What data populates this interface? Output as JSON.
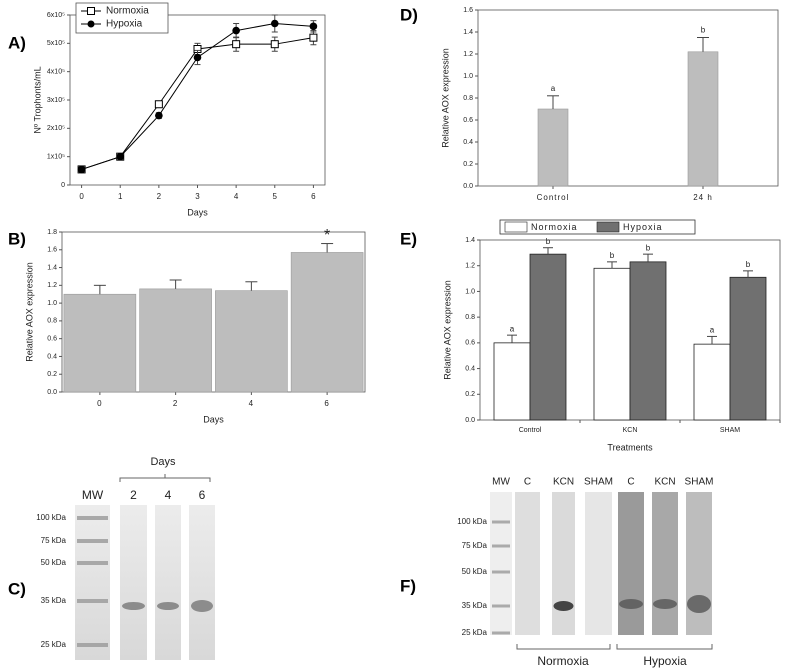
{
  "chart_data": [
    {
      "type": "line",
      "panel": "A)",
      "xlabel": "Days",
      "ylabel": "Nº Trophonts/mL",
      "x": [
        0,
        1,
        2,
        3,
        4,
        5,
        6
      ],
      "xlim": [
        -0.3,
        6.3
      ],
      "xticks": [
        0,
        1,
        2,
        3,
        4,
        5,
        6
      ],
      "ylim": [
        0,
        600000
      ],
      "yticks": [
        0,
        {
          "value": 100000,
          "label": "1x10⁵"
        },
        {
          "value": 200000,
          "label": "2x10⁵"
        },
        {
          "value": 300000,
          "label": "3x10⁵"
        },
        {
          "value": 400000,
          "label": "4x10⁵"
        },
        {
          "value": 500000,
          "label": "5x10⁵"
        },
        {
          "value": 600000,
          "label": "6x10⁵"
        }
      ],
      "legend": "upper left",
      "series": [
        {
          "name": "Normoxia",
          "color": "#000000",
          "marker": "open-square",
          "values": [
            55000,
            100000,
            285000,
            480000,
            497000,
            497000,
            520000
          ],
          "errors": [
            0,
            0,
            10000,
            20000,
            25000,
            25000,
            25000
          ]
        },
        {
          "name": "Hypoxia",
          "color": "#000000",
          "marker": "filled-circle",
          "values": [
            55000,
            100000,
            245000,
            450000,
            545000,
            570000,
            560000
          ],
          "errors": [
            0,
            0,
            10000,
            25000,
            25000,
            30000,
            20000
          ]
        }
      ]
    },
    {
      "type": "bar",
      "panel": "B)",
      "xlabel": "Days",
      "ylabel": "Relative AOX expression",
      "categories": [
        "0",
        "2",
        "4",
        "6"
      ],
      "values": [
        1.1,
        1.16,
        1.14,
        1.57
      ],
      "errors": [
        0.1,
        0.1,
        0.1,
        0.1
      ],
      "letters": [
        null,
        null,
        null,
        "*"
      ],
      "color": "#bdbdbd",
      "width": 0.95,
      "ylim": [
        0,
        1.8
      ],
      "yticks": [
        {
          "value": 0,
          "label": "0.0"
        },
        {
          "value": 0.2,
          "label": "0.2"
        },
        {
          "value": 0.4,
          "label": "0.4"
        },
        {
          "value": 0.6,
          "label": "0.6"
        },
        {
          "value": 0.8,
          "label": "0.8"
        },
        {
          "value": 1,
          "label": "1.0"
        },
        {
          "value": 1.2,
          "label": "1.2"
        },
        {
          "value": 1.4,
          "label": "1.4"
        },
        {
          "value": 1.6,
          "label": "1.6"
        },
        {
          "value": 1.8,
          "label": "1.8"
        }
      ]
    },
    {
      "type": "bar",
      "panel": "D)",
      "ylabel": "Relative AOX expression",
      "categories": [
        "Control",
        "24 h"
      ],
      "values": [
        0.7,
        1.22
      ],
      "errors": [
        0.12,
        0.13
      ],
      "letters": [
        "a",
        "b"
      ],
      "color": "#bdbdbd",
      "width": 0.2,
      "ylim": [
        0,
        1.6
      ],
      "yticks": [
        {
          "value": 0,
          "label": "0.0"
        },
        {
          "value": 0.2,
          "label": "0.2"
        },
        {
          "value": 0.4,
          "label": "0.4"
        },
        {
          "value": 0.6,
          "label": "0.6"
        },
        {
          "value": 0.8,
          "label": "0.8"
        },
        {
          "value": 1,
          "label": "1.0"
        },
        {
          "value": 1.2,
          "label": "1.2"
        },
        {
          "value": 1.4,
          "label": "1.4"
        },
        {
          "value": 1.6,
          "label": "1.6"
        }
      ]
    },
    {
      "type": "grouped-bar",
      "panel": "E)",
      "xlabel": "Treatments",
      "ylabel": "Relative AOX expression",
      "categories": [
        "Control",
        "KCN",
        "SHAM"
      ],
      "legend": "top",
      "ylim": [
        0,
        1.4
      ],
      "yticks": [
        {
          "value": 0,
          "label": "0.0"
        },
        {
          "value": 0.2,
          "label": "0.2"
        },
        {
          "value": 0.4,
          "label": "0.4"
        },
        {
          "value": 0.6,
          "label": "0.6"
        },
        {
          "value": 0.8,
          "label": "0.8"
        },
        {
          "value": 1,
          "label": "1.0"
        },
        {
          "value": 1.2,
          "label": "1.2"
        },
        {
          "value": 1.4,
          "label": "1.4"
        }
      ],
      "series": [
        {
          "name": "Normoxia",
          "color": "#ffffff",
          "values": [
            0.6,
            1.18,
            0.59
          ],
          "errors": [
            0.06,
            0.05,
            0.06
          ],
          "letters": [
            "a",
            "b",
            "a"
          ]
        },
        {
          "name": "Hypoxia",
          "color": "#707070",
          "values": [
            1.29,
            1.23,
            1.11
          ],
          "errors": [
            0.05,
            0.06,
            0.05
          ],
          "letters": [
            "b",
            "b",
            "b"
          ]
        }
      ]
    }
  ],
  "gels": [
    {
      "panel": "C)",
      "title": "Days",
      "lanes": [
        "MW",
        "2",
        "4",
        "6"
      ],
      "markers": [
        "100 kDa",
        "75 kDa",
        "50 kDa",
        "35 kDa",
        "25 kDa"
      ]
    },
    {
      "panel": "F)",
      "lanes": [
        "MW",
        "C",
        "KCN",
        "SHAM",
        "C",
        "KCN",
        "SHAM"
      ],
      "markers": [
        "100 kDa",
        "75 kDa",
        "50 kDa",
        "35 kDa",
        "25 kDa"
      ],
      "groups": [
        "Normoxia",
        "Hypoxia"
      ]
    }
  ]
}
